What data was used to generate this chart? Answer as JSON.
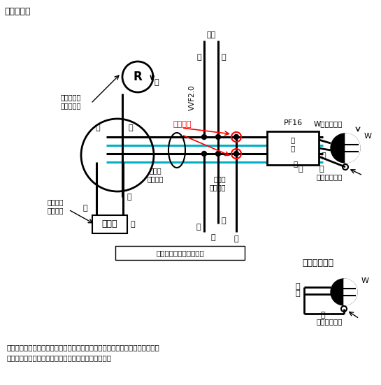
{
  "title": "【複線図】",
  "bg_color": "#ffffff",
  "black": "#000000",
  "cyan": "#00b0c8",
  "red": "#ff0000",
  "note1": "（注）　上記は一例であり、スイッチ及びコンセントの結線方法については、",
  "note2": "　　　これ以外にも正解となる結線方法があります。",
  "box_text": "電線の色別は問わない。",
  "caption": "（正解の例）",
  "label_dengen": "電源",
  "label_kuro1": "黒",
  "label_shiro1": "白",
  "label_vvf": "VVF2.0",
  "label_ko": "小で圧着",
  "label_pf16": "PF16",
  "label_W": "W",
  "label_ro1": "ロ",
  "label_ro2": "ロ",
  "label_W_hyoji": "Wの表示に白",
  "label_watari": "わたり線は黒",
  "label_watari2": "わたり線は黒",
  "label_ring": "リング\nスリーブ",
  "label_sashikomi": "差込形\nコネクタ",
  "label_i1": "イ",
  "label_i2": "イ",
  "label_ukegane": "受金ねじ部\nの端子に白",
  "label_setchi": "接地側の\n表示に白",
  "label_shiro_pf": "白",
  "label_aka_pf": "赤",
  "label_kuro_pf": "黒",
  "label_shiro2": "白",
  "label_kuro2": "黒",
  "label_shiro3": "白",
  "label_kuro3": "黒",
  "label_shiro4": "白",
  "label_kuro4": "黒",
  "label_shiro5": "白",
  "label_shiro6": "白",
  "label_aka2": "赤"
}
